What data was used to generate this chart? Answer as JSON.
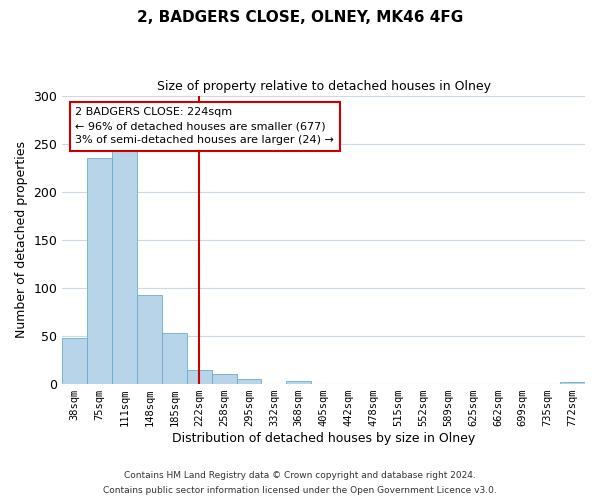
{
  "title": "2, BADGERS CLOSE, OLNEY, MK46 4FG",
  "subtitle": "Size of property relative to detached houses in Olney",
  "xlabel": "Distribution of detached houses by size in Olney",
  "ylabel": "Number of detached properties",
  "bar_labels": [
    "38sqm",
    "75sqm",
    "111sqm",
    "148sqm",
    "185sqm",
    "222sqm",
    "258sqm",
    "295sqm",
    "332sqm",
    "368sqm",
    "405sqm",
    "442sqm",
    "478sqm",
    "515sqm",
    "552sqm",
    "589sqm",
    "625sqm",
    "662sqm",
    "699sqm",
    "735sqm",
    "772sqm"
  ],
  "bar_heights": [
    48,
    235,
    250,
    93,
    53,
    15,
    10,
    5,
    0,
    3,
    0,
    0,
    0,
    0,
    0,
    0,
    0,
    0,
    0,
    0,
    2
  ],
  "bar_color": "#b8d4e8",
  "bar_edge_color": "#6aadd5",
  "vline_x": 5.0,
  "vline_color": "#cc0000",
  "annotation_text": "2 BADGERS CLOSE: 224sqm\n← 96% of detached houses are smaller (677)\n3% of semi-detached houses are larger (24) →",
  "annotation_box_color": "#ffffff",
  "annotation_box_edge": "#cc0000",
  "ylim": [
    0,
    300
  ],
  "yticks": [
    0,
    50,
    100,
    150,
    200,
    250,
    300
  ],
  "footer1": "Contains HM Land Registry data © Crown copyright and database right 2024.",
  "footer2": "Contains public sector information licensed under the Open Government Licence v3.0.",
  "bg_color": "#ffffff",
  "grid_color": "#ccd9e8"
}
